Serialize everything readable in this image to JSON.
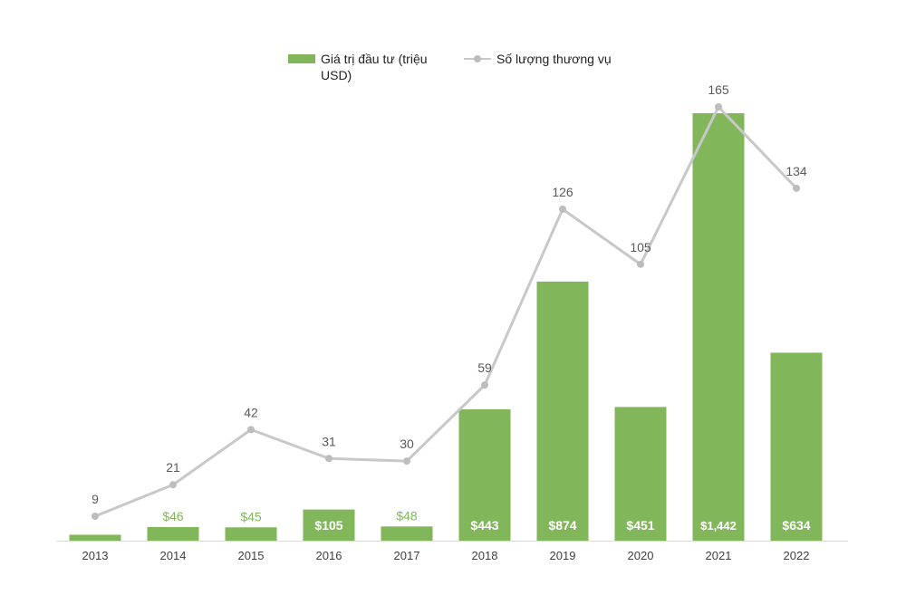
{
  "chart_data": {
    "type": "bar",
    "categories": [
      "2013",
      "2014",
      "2015",
      "2016",
      "2017",
      "2018",
      "2019",
      "2020",
      "2021",
      "2022"
    ],
    "series": [
      {
        "name": "Giá trị đầu tư (triệu USD)",
        "kind": "bar",
        "color": "#82b65a",
        "values": [
          20,
          46,
          45,
          105,
          48,
          443,
          874,
          451,
          1442,
          634
        ],
        "labels": [
          "",
          "$46",
          "$45",
          "$105",
          "$48",
          "$443",
          "$874",
          "$451",
          "$1,442",
          "$634"
        ]
      },
      {
        "name": "Số lượng thương vụ",
        "kind": "line",
        "color": "#c8c8c8",
        "values": [
          9,
          21,
          42,
          31,
          30,
          59,
          126,
          105,
          165,
          134
        ],
        "labels": [
          "9",
          "21",
          "42",
          "31",
          "30",
          "59",
          "126",
          "105",
          "165",
          "134"
        ]
      }
    ],
    "legend_position": "top-center",
    "grid": false
  },
  "legend": {
    "bar_label": "Giá trị đầu tư (triệu USD)",
    "line_label": "Số lượng thương vụ"
  }
}
